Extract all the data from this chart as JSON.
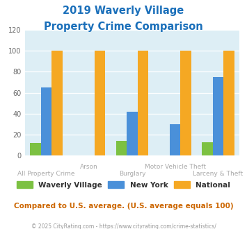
{
  "title_line1": "2019 Waverly Village",
  "title_line2": "Property Crime Comparison",
  "title_color": "#1a6fba",
  "categories": [
    "All Property Crime",
    "Arson",
    "Burglary",
    "Motor Vehicle Theft",
    "Larceny & Theft"
  ],
  "waverly_village": [
    12,
    0,
    14,
    0,
    13
  ],
  "new_york": [
    65,
    0,
    42,
    30,
    75
  ],
  "national": [
    100,
    100,
    100,
    100,
    100
  ],
  "colors": {
    "waverly_village": "#7cc142",
    "new_york": "#4a90d9",
    "national": "#f5a823"
  },
  "ylim": [
    0,
    120
  ],
  "yticks": [
    0,
    20,
    40,
    60,
    80,
    100,
    120
  ],
  "bg_color": "#ddeef5",
  "footer_text": "© 2025 CityRating.com - https://www.cityrating.com/crime-statistics/",
  "note_text": "Compared to U.S. average. (U.S. average equals 100)",
  "note_color": "#cc6600",
  "footer_color": "#999999",
  "xlabel_color": "#aaaaaa",
  "bar_width": 0.25,
  "top_labels": {
    "1": "Arson",
    "3": "Motor Vehicle Theft"
  },
  "bottom_labels": {
    "0": "All Property Crime",
    "2": "Burglary",
    "4": "Larceny & Theft"
  },
  "legend_labels": [
    "Waverly Village",
    "New York",
    "National"
  ]
}
